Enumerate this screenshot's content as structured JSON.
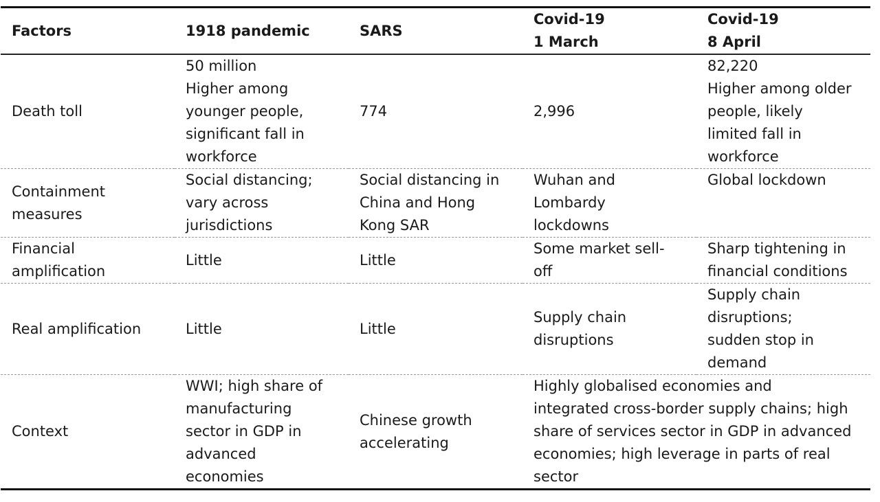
{
  "table": {
    "headers": [
      [
        "Factors"
      ],
      [
        "1918 pandemic"
      ],
      [
        "SARS"
      ],
      [
        "Covid-19",
        "1 March"
      ],
      [
        "Covid-19",
        "8 April"
      ]
    ],
    "rows": [
      {
        "factor": [
          "Death toll"
        ],
        "pandemic_1918": [
          "50 million",
          "Higher among",
          "younger people,",
          "significant fall in",
          "workforce"
        ],
        "sars": [
          "774"
        ],
        "covid_1_march": [
          "2,996"
        ],
        "covid_8_april": [
          "82,220",
          "Higher among older",
          "people, likely",
          "limited fall in",
          "workforce"
        ]
      },
      {
        "factor": [
          "Containment",
          "measures"
        ],
        "pandemic_1918": [
          "Social distancing;",
          "vary across",
          "jurisdictions"
        ],
        "sars": [
          "Social distancing in",
          "China and Hong",
          "Kong SAR"
        ],
        "covid_1_march": [
          "Wuhan and",
          "Lombardy",
          "lockdowns"
        ],
        "covid_8_april": [
          "Global lockdown"
        ]
      },
      {
        "factor": [
          "Financial",
          "amplification"
        ],
        "pandemic_1918": [
          "Little"
        ],
        "sars": [
          "Little"
        ],
        "covid_1_march": [
          "Some market sell-",
          "off"
        ],
        "covid_8_april": [
          "Sharp tightening in",
          "financial conditions"
        ]
      },
      {
        "factor": [
          "Real amplification"
        ],
        "pandemic_1918": [
          "Little"
        ],
        "sars": [
          "Little"
        ],
        "covid_1_march": [
          "Supply chain",
          "disruptions"
        ],
        "covid_8_april": [
          "Supply chain",
          "disruptions;",
          "sudden stop in",
          "demand"
        ]
      },
      {
        "factor": [
          "Context"
        ],
        "pandemic_1918": [
          "WWI; high share of",
          "manufacturing",
          "sector in GDP in",
          "advanced",
          "economies"
        ],
        "sars": [
          "Chinese growth",
          "accelerating"
        ],
        "covid_merged": [
          "Highly globalised economies and",
          "integrated cross-border supply chains; high",
          "share of services sector in GDP in advanced",
          "economies; high leverage in parts of real",
          "sector"
        ]
      }
    ]
  }
}
